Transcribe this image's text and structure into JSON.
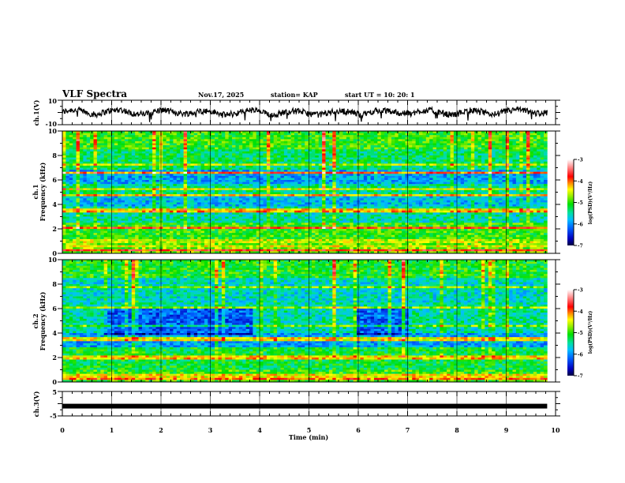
{
  "header": {
    "title": "VLF Spectra",
    "date": "Nov.17, 2025",
    "station": "station= KAP",
    "start": "start  UT =   10: 20: 1"
  },
  "chart_data": [
    {
      "id": "ch1-waveform",
      "type": "line",
      "ylabel": "ch.1(V)",
      "ylim": [
        -10,
        10
      ],
      "yticks": [
        "10",
        "-10"
      ],
      "xlim": [
        0,
        10
      ],
      "data_end_min": 9.83,
      "description_series": "noisy voltage trace fluctuating roughly between -8 and +6 V"
    },
    {
      "id": "ch1-spectrogram",
      "type": "heatmap",
      "ylabel_line1": "ch.1",
      "ylabel_line2": "Frequency (kHz)",
      "ylim": [
        0,
        10
      ],
      "yticks": [
        "0",
        "2",
        "4",
        "6",
        "8",
        "10"
      ],
      "xlim": [
        0,
        10
      ],
      "colorbar": {
        "label": "log(PSD)(V²/Hz)",
        "range": [
          -7,
          -3
        ],
        "ticks": [
          "-3",
          "-4",
          "-5",
          "-6",
          "-7"
        ]
      },
      "bands_khz": [
        {
          "f": 0.3,
          "level": -3.8
        },
        {
          "f": 0.6,
          "level": -4.5
        },
        {
          "f": 1.0,
          "level": -4.6
        },
        {
          "f": 2.1,
          "level": -3.9
        },
        {
          "f": 3.4,
          "level": -4.2
        },
        {
          "f": 3.6,
          "level": -4.4
        },
        {
          "f": 4.8,
          "level": -4.3
        },
        {
          "f": 5.3,
          "level": -4.5
        },
        {
          "f": 6.6,
          "level": -4.0
        },
        {
          "f": 7.2,
          "level": -4.6
        }
      ]
    },
    {
      "id": "ch2-spectrogram",
      "type": "heatmap",
      "ylabel_line1": "ch.2",
      "ylabel_line2": "Frequency (kHz)",
      "ylim": [
        0,
        10
      ],
      "yticks": [
        "0",
        "2",
        "4",
        "6",
        "8",
        "10"
      ],
      "xlim": [
        0,
        10
      ],
      "colorbar": {
        "label": "log(PSD)(V²/Hz)",
        "range": [
          -7,
          -3
        ],
        "ticks": [
          "-3",
          "-4",
          "-5",
          "-6",
          "-7"
        ]
      },
      "bands_khz": [
        {
          "f": 0.2,
          "level": -4.0
        },
        {
          "f": 0.5,
          "level": -4.4
        },
        {
          "f": 1.9,
          "level": -4.3
        },
        {
          "f": 2.1,
          "level": -4.4
        },
        {
          "f": 3.5,
          "level": -4.4
        },
        {
          "f": 4.6,
          "level": -4.8
        },
        {
          "f": 6.1,
          "level": -4.7
        },
        {
          "f": 7.8,
          "level": -4.8
        }
      ]
    },
    {
      "id": "ch3-waveform",
      "type": "line",
      "ylabel": "ch.3(V)",
      "ylim": [
        -5,
        5
      ],
      "yticks": [
        "5",
        "-5"
      ],
      "xlim": [
        0,
        10
      ],
      "data_end_min": 9.83,
      "value_level": -1.0
    }
  ],
  "xaxis": {
    "label": "Time  (min)",
    "ticks": [
      "0",
      "1",
      "2",
      "3",
      "4",
      "5",
      "6",
      "7",
      "8",
      "9",
      "10"
    ]
  },
  "colors": {
    "low": "#000060",
    "mid": "#00e000",
    "high": "#ff0000",
    "top": "#ffffff"
  }
}
